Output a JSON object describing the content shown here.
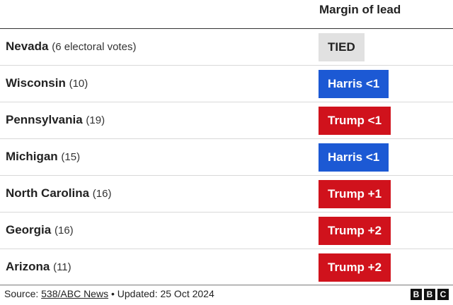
{
  "header": {
    "column": "Margin of lead"
  },
  "rows": [
    {
      "state": "Nevada",
      "note": "(6 electoral votes)",
      "margin": "TIED",
      "color": "#e1e1e1",
      "text_color": "#222222"
    },
    {
      "state": "Wisconsin",
      "note": "(10)",
      "margin": "Harris <1",
      "color": "#1c59d4",
      "text_color": "#ffffff"
    },
    {
      "state": "Pennsylvania",
      "note": "(19)",
      "margin": "Trump <1",
      "color": "#d0121c",
      "text_color": "#ffffff"
    },
    {
      "state": "Michigan",
      "note": "(15)",
      "margin": "Harris <1",
      "color": "#1c59d4",
      "text_color": "#ffffff"
    },
    {
      "state": "North Carolina",
      "note": "(16)",
      "margin": "Trump +1",
      "color": "#d0121c",
      "text_color": "#ffffff"
    },
    {
      "state": "Georgia",
      "note": "(16)",
      "margin": "Trump +2",
      "color": "#d0121c",
      "text_color": "#ffffff"
    },
    {
      "state": "Arizona",
      "note": "(11)",
      "margin": "Trump +2",
      "color": "#d0121c",
      "text_color": "#ffffff"
    }
  ],
  "footer": {
    "source_label": "Source:",
    "source_link": "538/ABC News",
    "updated": "• Updated: 25 Oct 2024",
    "logo": [
      "B",
      "B",
      "C"
    ]
  }
}
